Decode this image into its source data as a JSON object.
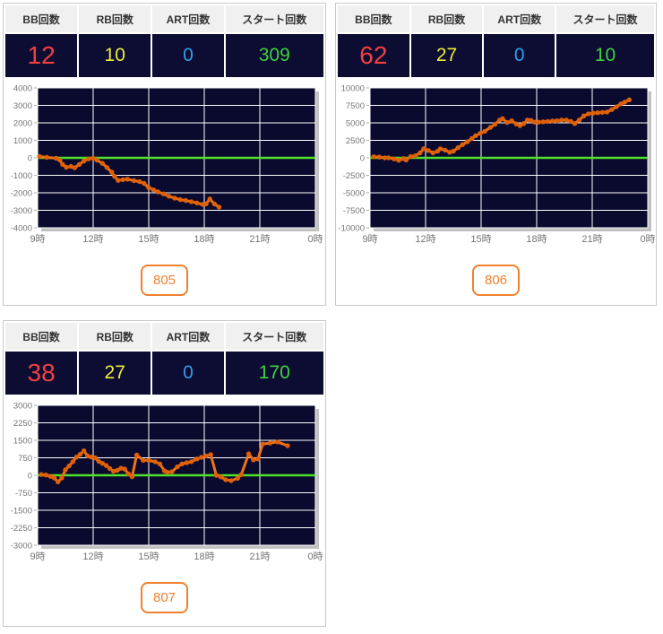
{
  "colors": {
    "accent_orange": "#f0812f",
    "value_bg": "#0d0c33",
    "plot_bg": "#0a0a2e",
    "grid": "#ffffff",
    "zero_line": "#4ee22a",
    "series": "#f07412",
    "marker": "#e06008",
    "tick_text": "#757575",
    "shadow": "#c2c2c2",
    "bb": "#f24040",
    "rb": "#ecec3a",
    "art": "#2f9fe8",
    "start": "#3cd43c"
  },
  "stats_headers": [
    "BB回数",
    "RB回数",
    "ART回数",
    "スタート回数"
  ],
  "panels": [
    {
      "machine_no": "805",
      "stats": {
        "bb": "12",
        "rb": "10",
        "art": "0",
        "start": "309"
      }
    },
    {
      "machine_no": "806",
      "stats": {
        "bb": "62",
        "rb": "27",
        "art": "0",
        "start": "10"
      }
    },
    {
      "machine_no": "807",
      "stats": {
        "bb": "38",
        "rb": "27",
        "art": "0",
        "start": "170"
      }
    }
  ],
  "chart_data": [
    {
      "type": "line",
      "title": "",
      "xlabel": "",
      "ylabel": "",
      "xlim": [
        9,
        24
      ],
      "ylim": [
        -4000,
        4000
      ],
      "ytick_step": 1000,
      "xticks": [
        9,
        12,
        15,
        18,
        21,
        24
      ],
      "xticklabels": [
        "9時",
        "12時",
        "15時",
        "18時",
        "21時",
        "0時"
      ],
      "grid": true,
      "legend": false,
      "points": [
        [
          9.1,
          75
        ],
        [
          9.5,
          25
        ],
        [
          10.0,
          -25
        ],
        [
          10.2,
          -130
        ],
        [
          10.35,
          -380
        ],
        [
          10.55,
          -540
        ],
        [
          10.8,
          -490
        ],
        [
          11.0,
          -570
        ],
        [
          11.25,
          -380
        ],
        [
          11.5,
          -180
        ],
        [
          11.75,
          -60
        ],
        [
          12.0,
          -25
        ],
        [
          12.2,
          -130
        ],
        [
          12.5,
          -320
        ],
        [
          12.75,
          -560
        ],
        [
          13.0,
          -820
        ],
        [
          13.15,
          -1060
        ],
        [
          13.35,
          -1290
        ],
        [
          13.6,
          -1250
        ],
        [
          13.85,
          -1220
        ],
        [
          14.2,
          -1310
        ],
        [
          14.5,
          -1360
        ],
        [
          14.75,
          -1460
        ],
        [
          15.0,
          -1700
        ],
        [
          15.25,
          -1830
        ],
        [
          15.5,
          -1950
        ],
        [
          15.8,
          -2060
        ],
        [
          16.1,
          -2200
        ],
        [
          16.4,
          -2310
        ],
        [
          16.7,
          -2390
        ],
        [
          17.0,
          -2440
        ],
        [
          17.3,
          -2510
        ],
        [
          17.6,
          -2580
        ],
        [
          17.9,
          -2660
        ],
        [
          18.1,
          -2630
        ],
        [
          18.3,
          -2360
        ],
        [
          18.55,
          -2640
        ],
        [
          18.8,
          -2820
        ]
      ]
    },
    {
      "type": "line",
      "title": "",
      "xlabel": "",
      "ylabel": "",
      "xlim": [
        9,
        24
      ],
      "ylim": [
        -10000,
        10000
      ],
      "ytick_step": 2500,
      "xticks": [
        9,
        12,
        15,
        18,
        21,
        24
      ],
      "xticklabels": [
        "9時",
        "12時",
        "15時",
        "18時",
        "21時",
        "0時"
      ],
      "grid": true,
      "legend": false,
      "points": [
        [
          9.2,
          150
        ],
        [
          9.5,
          100
        ],
        [
          9.8,
          0
        ],
        [
          10.0,
          0
        ],
        [
          10.3,
          -150
        ],
        [
          10.55,
          -350
        ],
        [
          10.8,
          -100
        ],
        [
          10.95,
          -300
        ],
        [
          11.2,
          200
        ],
        [
          11.45,
          300
        ],
        [
          11.7,
          700
        ],
        [
          11.9,
          1300
        ],
        [
          12.15,
          1050
        ],
        [
          12.4,
          700
        ],
        [
          12.65,
          950
        ],
        [
          12.8,
          1300
        ],
        [
          13.05,
          1100
        ],
        [
          13.3,
          800
        ],
        [
          13.5,
          950
        ],
        [
          13.75,
          1450
        ],
        [
          14.0,
          1900
        ],
        [
          14.25,
          2300
        ],
        [
          14.5,
          2750
        ],
        [
          14.7,
          3150
        ],
        [
          14.95,
          3500
        ],
        [
          15.2,
          3800
        ],
        [
          15.5,
          4350
        ],
        [
          15.75,
          4800
        ],
        [
          16.0,
          5400
        ],
        [
          16.15,
          5600
        ],
        [
          16.4,
          5050
        ],
        [
          16.65,
          5300
        ],
        [
          16.9,
          4850
        ],
        [
          17.1,
          4600
        ],
        [
          17.3,
          4900
        ],
        [
          17.5,
          5400
        ],
        [
          17.7,
          5350
        ],
        [
          17.9,
          5100
        ],
        [
          18.1,
          5100
        ],
        [
          18.35,
          5150
        ],
        [
          18.6,
          5200
        ],
        [
          18.85,
          5250
        ],
        [
          19.1,
          5300
        ],
        [
          19.35,
          5400
        ],
        [
          19.6,
          5400
        ],
        [
          19.85,
          5200
        ],
        [
          20.05,
          4900
        ],
        [
          20.3,
          5400
        ],
        [
          20.55,
          6000
        ],
        [
          20.8,
          6300
        ],
        [
          21.05,
          6400
        ],
        [
          21.3,
          6450
        ],
        [
          21.55,
          6500
        ],
        [
          21.8,
          6550
        ],
        [
          22.05,
          6900
        ],
        [
          22.3,
          7300
        ],
        [
          22.55,
          7700
        ],
        [
          22.75,
          7950
        ],
        [
          23.0,
          8300
        ]
      ]
    },
    {
      "type": "line",
      "title": "",
      "xlabel": "",
      "ylabel": "",
      "xlim": [
        9,
        24
      ],
      "ylim": [
        -3000,
        3000
      ],
      "ytick_step": 750,
      "xticks": [
        9,
        12,
        15,
        18,
        21,
        24
      ],
      "xticklabels": [
        "9時",
        "12時",
        "15時",
        "18時",
        "21時",
        "0時"
      ],
      "grid": true,
      "legend": false,
      "points": [
        [
          9.2,
          30
        ],
        [
          9.45,
          10
        ],
        [
          9.7,
          -50
        ],
        [
          9.9,
          -120
        ],
        [
          10.1,
          -280
        ],
        [
          10.3,
          -120
        ],
        [
          10.5,
          230
        ],
        [
          10.7,
          400
        ],
        [
          10.9,
          580
        ],
        [
          11.1,
          780
        ],
        [
          11.3,
          900
        ],
        [
          11.5,
          1050
        ],
        [
          11.7,
          830
        ],
        [
          11.9,
          780
        ],
        [
          12.1,
          750
        ],
        [
          12.3,
          600
        ],
        [
          12.5,
          510
        ],
        [
          12.7,
          420
        ],
        [
          12.9,
          290
        ],
        [
          13.1,
          170
        ],
        [
          13.3,
          210
        ],
        [
          13.5,
          300
        ],
        [
          13.7,
          270
        ],
        [
          13.9,
          60
        ],
        [
          14.1,
          -60
        ],
        [
          14.35,
          870
        ],
        [
          14.7,
          640
        ],
        [
          15.0,
          640
        ],
        [
          15.35,
          580
        ],
        [
          15.6,
          490
        ],
        [
          15.85,
          190
        ],
        [
          16.0,
          130
        ],
        [
          16.25,
          150
        ],
        [
          16.55,
          360
        ],
        [
          16.8,
          490
        ],
        [
          17.05,
          540
        ],
        [
          17.3,
          580
        ],
        [
          17.6,
          700
        ],
        [
          17.85,
          770
        ],
        [
          18.1,
          830
        ],
        [
          18.35,
          890
        ],
        [
          18.65,
          0
        ],
        [
          18.9,
          -70
        ],
        [
          19.15,
          -190
        ],
        [
          19.45,
          -230
        ],
        [
          19.8,
          -130
        ],
        [
          20.0,
          30
        ],
        [
          20.4,
          920
        ],
        [
          20.65,
          660
        ],
        [
          20.9,
          700
        ],
        [
          21.15,
          1340
        ],
        [
          21.55,
          1380
        ],
        [
          21.95,
          1430
        ],
        [
          22.5,
          1270
        ]
      ]
    }
  ]
}
